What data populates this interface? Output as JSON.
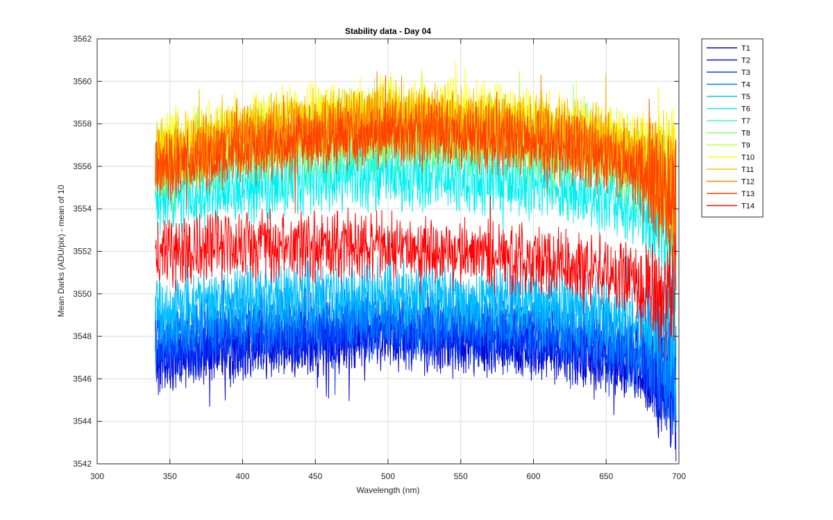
{
  "chart_data": {
    "type": "line",
    "title": "Stability data - Day 04",
    "xlabel": "Wavelength (nm)",
    "ylabel": "Mean Darks (ADU/pix) - mean of 10",
    "xlim": [
      300,
      700
    ],
    "ylim": [
      3542,
      3562
    ],
    "xticks": [
      300,
      350,
      400,
      450,
      500,
      550,
      600,
      650,
      700
    ],
    "yticks": [
      3542,
      3544,
      3546,
      3548,
      3550,
      3552,
      3554,
      3556,
      3558,
      3560,
      3562
    ],
    "grid": true,
    "legend_position": "outside-top-right",
    "x_range": [
      340,
      698
    ],
    "series": [
      {
        "name": "T1",
        "color": "#0000cc",
        "x": [
          340,
          400,
          450,
          500,
          550,
          600,
          650,
          680,
          698
        ],
        "y": [
          3547.0,
          3547.6,
          3547.8,
          3548.0,
          3547.8,
          3547.6,
          3547.0,
          3546.3,
          3545.0
        ]
      },
      {
        "name": "T2",
        "color": "#0010e0",
        "x": [
          340,
          400,
          450,
          500,
          550,
          600,
          650,
          680,
          698
        ],
        "y": [
          3547.3,
          3547.9,
          3548.1,
          3548.2,
          3548.0,
          3547.8,
          3547.3,
          3546.6,
          3545.4
        ]
      },
      {
        "name": "T3",
        "color": "#0040ff",
        "x": [
          340,
          400,
          450,
          500,
          550,
          600,
          650,
          680,
          698
        ],
        "y": [
          3547.6,
          3548.2,
          3548.4,
          3548.5,
          3548.3,
          3548.1,
          3547.6,
          3546.9,
          3545.8
        ]
      },
      {
        "name": "T4",
        "color": "#0080ff",
        "x": [
          340,
          400,
          450,
          500,
          550,
          600,
          650,
          680,
          698
        ],
        "y": [
          3548.2,
          3548.8,
          3549.0,
          3549.1,
          3548.9,
          3548.7,
          3548.2,
          3547.5,
          3546.5
        ]
      },
      {
        "name": "T5",
        "color": "#00c0ff",
        "x": [
          340,
          400,
          450,
          500,
          550,
          600,
          650,
          680,
          698
        ],
        "y": [
          3549.2,
          3549.8,
          3550.0,
          3550.1,
          3549.9,
          3549.7,
          3549.2,
          3548.6,
          3547.5
        ]
      },
      {
        "name": "T6",
        "color": "#00f0f0",
        "x": [
          340,
          400,
          450,
          500,
          550,
          600,
          650,
          680,
          698
        ],
        "y": [
          3554.3,
          3555.0,
          3555.4,
          3555.6,
          3555.4,
          3555.2,
          3554.5,
          3553.5,
          3551.8
        ]
      },
      {
        "name": "T7",
        "color": "#40ffc0",
        "x": [
          340,
          400,
          450,
          500,
          550,
          600,
          650,
          680,
          698
        ],
        "y": [
          3555.8,
          3556.6,
          3557.0,
          3557.2,
          3557.0,
          3556.8,
          3556.2,
          3555.3,
          3553.8
        ]
      },
      {
        "name": "T8",
        "color": "#80ff80",
        "x": [
          340,
          400,
          450,
          500,
          550,
          600,
          650,
          680,
          698
        ],
        "y": [
          3556.0,
          3556.9,
          3557.3,
          3557.5,
          3557.3,
          3557.1,
          3556.5,
          3555.7,
          3554.2
        ]
      },
      {
        "name": "T9",
        "color": "#c0ff40",
        "x": [
          340,
          400,
          450,
          500,
          550,
          600,
          650,
          680,
          698
        ],
        "y": [
          3556.4,
          3557.4,
          3557.9,
          3558.1,
          3557.9,
          3557.7,
          3557.0,
          3556.2,
          3554.8
        ]
      },
      {
        "name": "T10",
        "color": "#ffff00",
        "x": [
          340,
          400,
          450,
          500,
          550,
          600,
          650,
          680,
          698
        ],
        "y": [
          3556.8,
          3557.8,
          3558.3,
          3558.6,
          3558.4,
          3558.1,
          3557.5,
          3556.6,
          3555.3
        ]
      },
      {
        "name": "T11",
        "color": "#ffc000",
        "x": [
          340,
          400,
          450,
          500,
          550,
          600,
          650,
          680,
          698
        ],
        "y": [
          3556.5,
          3557.5,
          3558.0,
          3558.3,
          3558.1,
          3557.8,
          3557.2,
          3556.3,
          3555.0
        ]
      },
      {
        "name": "T12",
        "color": "#ff8000",
        "x": [
          340,
          400,
          450,
          500,
          550,
          600,
          650,
          680,
          698
        ],
        "y": [
          3556.2,
          3557.2,
          3557.7,
          3558.0,
          3557.8,
          3557.5,
          3556.9,
          3556.0,
          3554.6
        ]
      },
      {
        "name": "T13",
        "color": "#ff4000",
        "x": [
          340,
          400,
          450,
          500,
          550,
          600,
          650,
          680,
          698
        ],
        "y": [
          3555.8,
          3556.8,
          3557.3,
          3557.6,
          3557.4,
          3557.1,
          3556.4,
          3555.4,
          3553.8
        ]
      },
      {
        "name": "T14",
        "color": "#ff0000",
        "x": [
          340,
          400,
          450,
          500,
          550,
          600,
          650,
          680,
          698
        ],
        "y": [
          3552.0,
          3552.3,
          3552.3,
          3552.2,
          3551.9,
          3551.6,
          3551.1,
          3550.4,
          3549.6
        ]
      }
    ]
  }
}
